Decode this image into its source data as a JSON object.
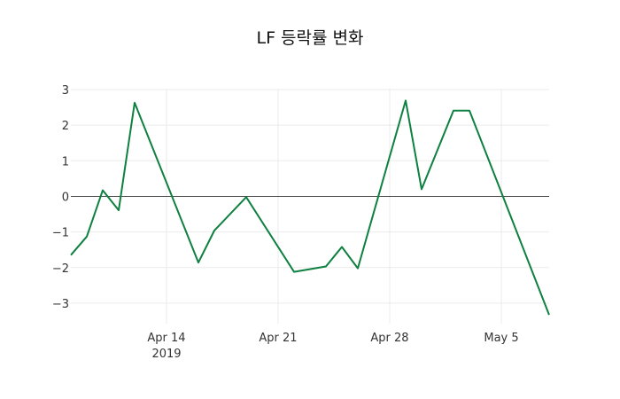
{
  "chart_data": {
    "type": "line",
    "title": "LF 등락률 변화",
    "xlabel": "",
    "ylabel": "",
    "ylim": [
      -3.35,
      3.0
    ],
    "xlim": [
      "2019-04-08",
      "2019-05-08"
    ],
    "grid": true,
    "legend": null,
    "y_ticks": [
      3,
      2,
      1,
      0,
      -1,
      -2,
      -3
    ],
    "y_tick_labels": [
      "3",
      "2",
      "1",
      "0",
      "−1",
      "−2",
      "−3"
    ],
    "x_ticks": [
      {
        "date": "2019-04-14",
        "label": "Apr 14",
        "sublabel": "2019"
      },
      {
        "date": "2019-04-21",
        "label": "Apr 21",
        "sublabel": ""
      },
      {
        "date": "2019-04-28",
        "label": "Apr 28",
        "sublabel": ""
      },
      {
        "date": "2019-05-05",
        "label": "May 5",
        "sublabel": ""
      }
    ],
    "series": [
      {
        "name": "LF",
        "color": "#0e8040",
        "x": [
          "2019-04-08",
          "2019-04-09",
          "2019-04-10",
          "2019-04-11",
          "2019-04-12",
          "2019-04-16",
          "2019-04-17",
          "2019-04-19",
          "2019-04-22",
          "2019-04-24",
          "2019-04-25",
          "2019-04-26",
          "2019-04-29",
          "2019-04-30",
          "2019-05-02",
          "2019-05-03",
          "2019-05-08"
        ],
        "values": [
          -1.65,
          -1.13,
          0.17,
          -0.39,
          2.63,
          -1.86,
          -0.96,
          -0.02,
          -2.12,
          -1.97,
          -1.42,
          -2.02,
          2.69,
          0.2,
          2.41,
          2.41,
          -3.33
        ]
      }
    ]
  }
}
